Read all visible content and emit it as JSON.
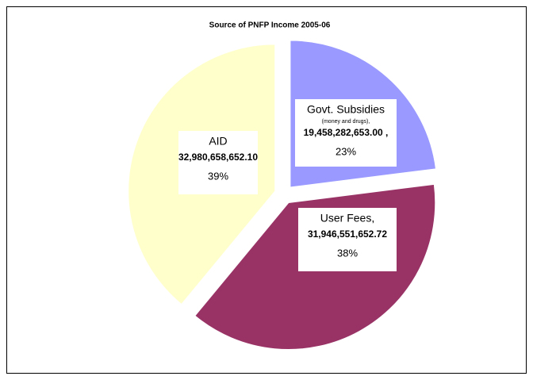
{
  "chart_data": {
    "type": "pie",
    "title": "Source of PNFP Income 2005-06",
    "categories": [
      "Govt. Subsidies",
      "User Fees,",
      "AID"
    ],
    "notes": [
      "(money and drugs),",
      null,
      null
    ],
    "amounts": [
      "19,458,282,653.00 ,",
      "31,946,551,652.72",
      "32,980,658,652.10"
    ],
    "values": [
      23,
      38,
      39
    ],
    "value_labels": [
      "23%",
      "38%",
      "39%"
    ],
    "colors": [
      "#9999ff",
      "#993366",
      "#ffffcc"
    ]
  }
}
